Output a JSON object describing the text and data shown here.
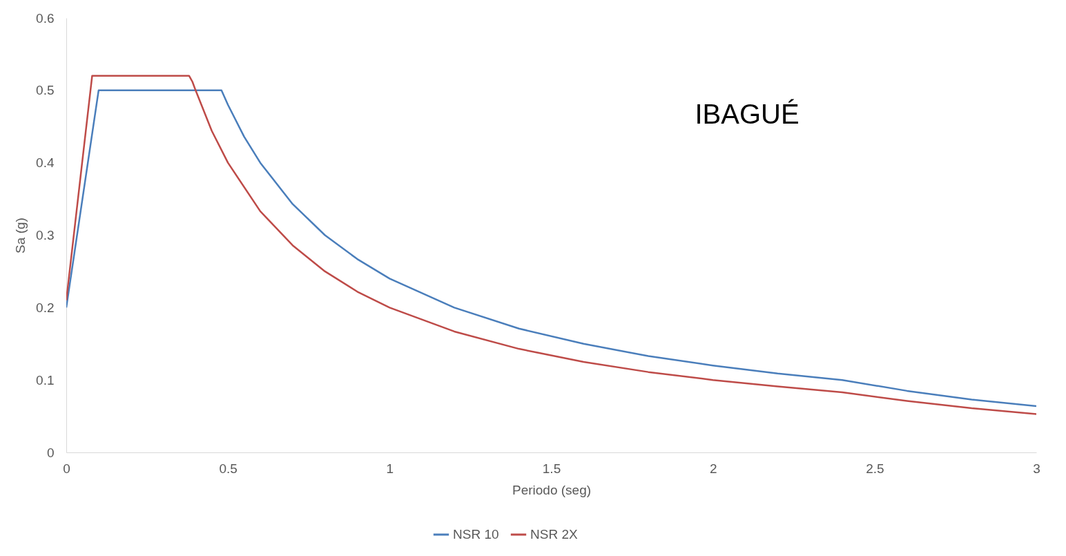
{
  "chart_data": {
    "type": "line",
    "xlabel": "Periodo (seg)",
    "ylabel": "Sa (g)",
    "xlim": [
      0,
      3
    ],
    "ylim": [
      0,
      0.6
    ],
    "xticks": [
      0,
      0.5,
      1,
      1.5,
      2,
      2.5,
      3
    ],
    "yticks": [
      0,
      0.1,
      0.2,
      0.3,
      0.4,
      0.5,
      0.6
    ],
    "grid": false,
    "legend": "bottom",
    "marker": "none",
    "line_style": "solid",
    "annotations": [
      "IBAGUÉ"
    ],
    "series": [
      {
        "name": "NSR 10",
        "color": "#4a7ebb",
        "x": [
          0,
          0.1,
          0.48,
          0.5,
          0.55,
          0.6,
          0.7,
          0.8,
          0.9,
          1.0,
          1.2,
          1.4,
          1.6,
          1.8,
          2.0,
          2.2,
          2.4,
          2.6,
          2.8,
          3.0
        ],
        "values": [
          0.2,
          0.5,
          0.5,
          0.48,
          0.436,
          0.4,
          0.343,
          0.3,
          0.267,
          0.24,
          0.2,
          0.171,
          0.15,
          0.133,
          0.12,
          0.109,
          0.1,
          0.085,
          0.073,
          0.064
        ]
      },
      {
        "name": "NSR 2X",
        "color": "#be4b48",
        "x": [
          0,
          0.08,
          0.38,
          0.39,
          0.4,
          0.45,
          0.5,
          0.6,
          0.7,
          0.8,
          0.9,
          1.0,
          1.2,
          1.4,
          1.6,
          1.8,
          2.0,
          2.2,
          2.4,
          2.6,
          2.8,
          3.0
        ],
        "values": [
          0.21,
          0.52,
          0.52,
          0.512,
          0.5,
          0.444,
          0.4,
          0.333,
          0.286,
          0.25,
          0.222,
          0.2,
          0.167,
          0.143,
          0.125,
          0.111,
          0.1,
          0.091,
          0.083,
          0.071,
          0.061,
          0.053
        ]
      }
    ]
  }
}
